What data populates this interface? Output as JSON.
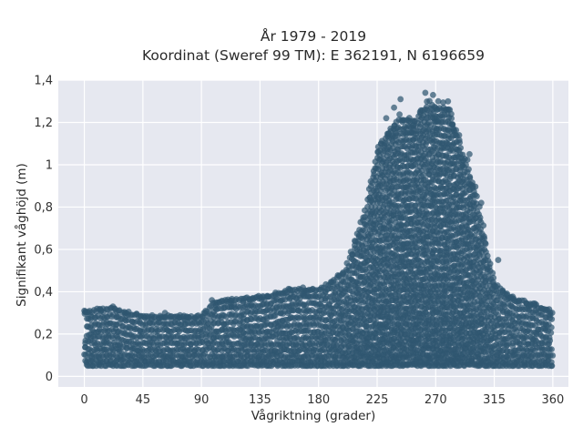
{
  "chart_data": {
    "type": "scatter",
    "title": "År 1979 - 2019",
    "subtitle": "Koordinat (Sweref 99 TM): E 362191, N 6196659",
    "xlabel": "Vågriktning (grader)",
    "ylabel": "Signifikant våghöjd (m)",
    "xlim": [
      -20,
      372
    ],
    "ylim": [
      -0.05,
      1.4
    ],
    "x_ticks": [
      0,
      45,
      90,
      135,
      180,
      225,
      270,
      315,
      360
    ],
    "x_tick_labels": [
      "0",
      "45",
      "90",
      "135",
      "180",
      "225",
      "270",
      "315",
      "360"
    ],
    "y_ticks": [
      0,
      0.2,
      0.4,
      0.6,
      0.8,
      1.0,
      1.2,
      1.4
    ],
    "y_tick_labels": [
      "0",
      "0,2",
      "0,4",
      "0,6",
      "0,8",
      "1",
      "1,2",
      "1,4"
    ],
    "grid": true,
    "legend": "none",
    "color": "#2f5670",
    "background": "#e6e8f0",
    "envelope": {
      "x": [
        0,
        20,
        45,
        90,
        100,
        135,
        160,
        180,
        200,
        215,
        225,
        240,
        255,
        265,
        270,
        280,
        290,
        300,
        315,
        330,
        345,
        360
      ],
      "y_min": [
        0.05,
        0.05,
        0.05,
        0.05,
        0.05,
        0.05,
        0.05,
        0.05,
        0.05,
        0.05,
        0.05,
        0.05,
        0.05,
        0.05,
        0.05,
        0.05,
        0.05,
        0.05,
        0.05,
        0.05,
        0.05,
        0.05
      ],
      "y_max": [
        0.31,
        0.33,
        0.29,
        0.29,
        0.36,
        0.38,
        0.42,
        0.42,
        0.5,
        0.78,
        1.1,
        1.24,
        1.25,
        1.34,
        1.3,
        1.3,
        1.1,
        0.92,
        0.45,
        0.37,
        0.35,
        0.31
      ]
    },
    "outliers": [
      [
        0,
        0.31
      ],
      [
        22,
        0.33
      ],
      [
        62,
        0.3
      ],
      [
        98,
        0.36
      ],
      [
        134,
        0.38
      ],
      [
        168,
        0.42
      ],
      [
        228,
        1.1
      ],
      [
        232,
        1.22
      ],
      [
        238,
        1.27
      ],
      [
        243,
        1.31
      ],
      [
        250,
        1.18
      ],
      [
        258,
        1.25
      ],
      [
        262,
        1.34
      ],
      [
        268,
        1.33
      ],
      [
        272,
        1.3
      ],
      [
        276,
        1.27
      ],
      [
        282,
        1.24
      ],
      [
        288,
        1.14
      ],
      [
        296,
        1.05
      ],
      [
        305,
        0.82
      ],
      [
        318,
        0.55
      ],
      [
        330,
        0.36
      ]
    ]
  }
}
